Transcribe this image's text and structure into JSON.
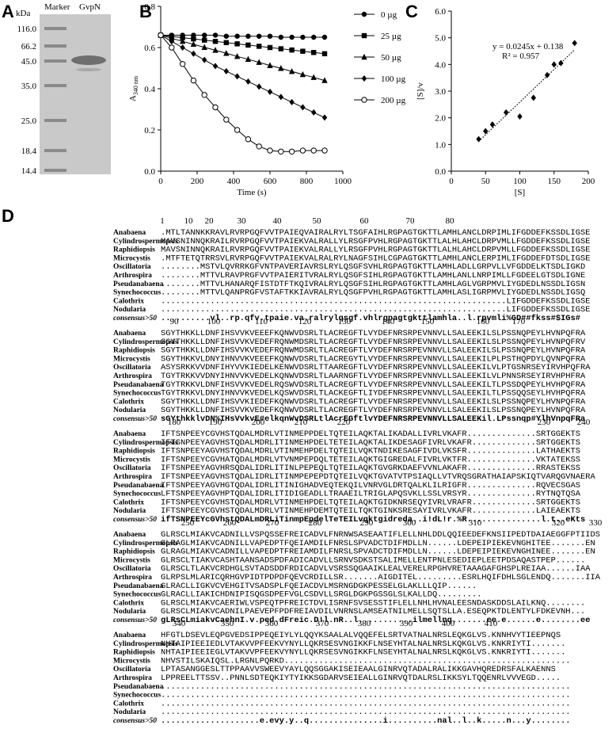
{
  "panel_labels": [
    "A",
    "B",
    "C",
    "D"
  ],
  "gel": {
    "unit": "kDa",
    "lanes": [
      "Marker",
      "GvpN"
    ],
    "markers": [
      "116.0",
      "66.2",
      "45.0",
      "35.0",
      "25.0",
      "18.4",
      "14.4"
    ]
  },
  "chart_data": [
    {
      "type": "line",
      "y_label": "A",
      "y_label_sub": "340 nm",
      "x_label": "Time (s)",
      "x": [
        0,
        60,
        120,
        180,
        240,
        300,
        360,
        420,
        480,
        540,
        600,
        660,
        720,
        780,
        840,
        900
      ],
      "xlim": [
        0,
        1000
      ],
      "xticks": [
        0,
        200,
        400,
        600,
        800,
        1000
      ],
      "ylim": [
        0,
        0.8
      ],
      "yticks": [
        {
          "value": 0,
          "label": "0.0"
        },
        {
          "value": 0.2,
          "label": "0.2"
        },
        {
          "value": 0.4,
          "label": "0.4"
        },
        {
          "value": 0.6,
          "label": "0.6"
        },
        {
          "value": 0.8,
          "label": "0.8"
        }
      ],
      "legend": "right",
      "series": [
        {
          "name": "0 µg",
          "color": "#000000",
          "marker": "circle",
          "values": [
            0.66,
            0.66,
            0.66,
            0.66,
            0.66,
            0.66,
            0.655,
            0.655,
            0.655,
            0.655,
            0.655,
            0.65,
            0.65,
            0.65,
            0.65,
            0.65
          ]
        },
        {
          "name": "25 µg",
          "color": "#000000",
          "marker": "square",
          "values": [
            0.66,
            0.654,
            0.648,
            0.642,
            0.636,
            0.63,
            0.624,
            0.618,
            0.612,
            0.606,
            0.6,
            0.594,
            0.588,
            0.582,
            0.576,
            0.57
          ]
        },
        {
          "name": "50 µg",
          "color": "#000000",
          "marker": "triangle",
          "values": [
            0.66,
            0.645,
            0.63,
            0.616,
            0.601,
            0.587,
            0.572,
            0.557,
            0.543,
            0.528,
            0.513,
            0.499,
            0.484,
            0.469,
            0.455,
            0.44
          ]
        },
        {
          "name": "100 µg",
          "color": "#000000",
          "marker": "diamond",
          "values": [
            0.66,
            0.63,
            0.6,
            0.57,
            0.54,
            0.51,
            0.485,
            0.46,
            0.435,
            0.41,
            0.385,
            0.36,
            0.335,
            0.31,
            0.285,
            0.26
          ]
        },
        {
          "name": "200 µg",
          "color": "#000000",
          "marker": "open-circle",
          "values": [
            0.66,
            0.6,
            0.52,
            0.44,
            0.37,
            0.31,
            0.25,
            0.2,
            0.155,
            0.12,
            0.1,
            0.095,
            0.095,
            0.1,
            0.1,
            0.1
          ]
        }
      ]
    },
    {
      "type": "scatter",
      "x_label": "[S]",
      "y_label": "[S]/v",
      "x": [
        40,
        50,
        60,
        80,
        100,
        120,
        140,
        150,
        160,
        180
      ],
      "values": [
        1.2,
        1.5,
        1.75,
        2.2,
        2.05,
        2.75,
        3.6,
        4.0,
        4.05,
        4.8
      ],
      "color": "#000000",
      "xlim": [
        0,
        200
      ],
      "xticks": [
        0,
        50,
        100,
        150,
        200
      ],
      "ylim": [
        0,
        6
      ],
      "yticks": [
        {
          "value": 0,
          "label": "0.0"
        },
        {
          "value": 1,
          "label": "1.0"
        },
        {
          "value": 2,
          "label": "2.0"
        },
        {
          "value": 3,
          "label": "3.0"
        },
        {
          "value": 4,
          "label": "4.0"
        },
        {
          "value": 5,
          "label": "5.0"
        },
        {
          "value": 6,
          "label": "6.0"
        }
      ],
      "trendline": {
        "slope": 0.0245,
        "intercept": 0.138
      },
      "annotations": [
        "y = 0.0245x + 0.138",
        "R² = 0.957"
      ]
    }
  ],
  "alignment": {
    "names": [
      "Anabaena",
      "Cylindrospermopsis",
      "Raphidiopsis",
      "Microcystis",
      "Oscillatoria",
      "Arthrospira",
      "Pseudanabaena",
      "Synechococcus",
      "Calothrix",
      "Nodularia",
      "consensus>50"
    ],
    "blocks": [
      {
        "positions": [
          1,
          10,
          20,
          30,
          40,
          50,
          60,
          70,
          80
        ],
        "rows": [
          ".MTLTANNKKRAVLRVRPGQFVVTPAIEQVAIRALRYLTSGFAIHLRGPAGTGKTTLAMHLANCLDRPIMLIFGDDEFKSSDLIGSE",
          "MAVSNINNQKRAILRVRPGQFVVTPAIEKVALRALLYLRSGFPVHLRGPAGTGKTTLALHLAHCLDRPVMLLFGDDEFKSSDLIGSE",
          "MAVSNINNQKRAILRVRPGQFVVTPAIEKVALRALLYLRSGFPVHLRGPAGTGKTTLALHLAHCLDRPVMLLFGDDEFKSSDLIGSE",
          ".MTFTETQTRRSVLRVRPGQFVVTPAIEKVALRALRYLNAGFSIHLCGPAGTGKTTLAMHLANCLERPIMLIFGDDEFDTSDLIGSE",
          "........MSTVLQVRRKGFVNTPAVERIAVRSLRYLQSGFSVHLRGPAGTGKTTLAMHLADLLGRPVLLVFGDDELKTSDLIGKD",
          "........MTTVLRAVPRGFVVTPAIERITVRALRYLQSGFSIHLRGPAGTGKTTLAMHLANLLNRPIMLLFGDEELGTSDLIGNE",
          "........MTTVLHANARQFISTDTFTKQIVRALRYLQSGFSIHLRGPAGTGKTTLAMHLAGLVGRPMVLIYGDEDLNSSDLIGSN",
          "........MTTVLQANPRGFVSTAFTKKIAVRALRYLQSGFPVHLRGPAGTGKTTLAMHLASLIGRPMVLIYGDEDLNSSDLIGSQ",
          "......................................................................LIFGDDEFKSSDLIGSE",
          "......................................................................LIFGDDEFKSSDLIGSE",
          "..........vl..rp.qfv.tpaie.va.ralrylqsgf.vhlrgpagtgkttlamhla..l.rpvmli%GD##fkss#$IGs#"
        ]
      },
      {
        "positions": [
          90,
          100,
          110,
          120,
          130,
          140,
          150,
          160,
          170
        ],
        "rows": [
          "SGYTHKKLLDNFIHSVVKVEEEFKQNWVDSRLTLACREGFTLVYDEFNRSRPEVNNVLLSALEEKILSLPSSNQPEYLHVNPQFRA",
          "SGYTHKKLLDNFIHSVVKVEDEFRQNWMDSRLTLACREGFTLVYDEFNRSRPEVNNVLLSALEEKILSLPSSNQPEYLHVNPQFRV",
          "SGYTHKKLLDNFIHSVVKVEDEFRQNWMDSRLTLACREGFTLVYDEFNRSRPEVNNVLLSALEEKILSLPSSNQPEYLHVNPQFRA",
          "SGYTHKKVLDNYIHNVVKVEEEFKQNWVDSRLTLACREGYTLVYDEFNRSRPEVNNVLLSALEEKILPLPSTHQPDYLQVNPQFRA",
          "ASYSRKKVVDNFIHYVVKIEDELKENWVDSRLTTAAREGFTLVYDEFNRSRPEVNNVLLSALEEKILVLPTGSNRSEYIRVHPQFRA",
          "TGYTRKKVVDNYIHNVVKVEDELKQNWVDSRLTLAARNGFTLVYDEFNRSRPEVNNVLLSALEEKILVLPNNSRSEYIRVHPHFRA",
          "TGYTRKKVLDNFIHSVVKVEDELRQSWVDSRLTLACREGFTLVYDEFNRSRPEVNNVLLSALEEKILTLPSSDQPEYLHVHPQFRA",
          "TGYTRKKVLDNYIHNVVKVEDELKQSWVDSRLTLACKEGFTLIYDEFNRSRPEVNNVLLSALEEKILTLPSSQQSEYLHVHPQFRA",
          "SGYTHKKLLDNFIHSVVKIEDEFKQNWVDSRLTLACREGFTLVYDEFNRSRPEVNNVLLSALEEKILSLPSSNQPEYLHVNPQFRA",
          "SGYTHKKLLDNFIHSVVKVEDEFKQNWVDSRLTLACREGFTLVYDEFNRSRPEVNNVLLSALEEKILSLPSSNQPEYLHVNPQFRA",
          "sGYthkklvDN%IHsVvkvE#elkqnWvDSRLtlAcrEGftlvYDEFNRSRPEVNNVLLSALEEKil.LPssnqp#YlhVnpqFRa"
        ]
      },
      {
        "positions": [
          180,
          190,
          200,
          210,
          220,
          230,
          240
        ],
        "rows": [
          "IFTSNPEEYCGVHSTQDALMDRLVTINMEPPDELTQTEILAQKTALIKADALLIVRLVKAFR..............SRTGGEKTS",
          "IFTSNPEEYAGVHSTQDALMDRLITINMEHPDELTETEILAQKTALIKDESAGFIVRLVKAFR.............SRTGGEKTS",
          "IFTSNPEEYAGVHSTQDALMDRLVTINMEHPDELTQTEILVQKTNDIKESAGFIVDLVKSFR..............LATHAEKTS",
          "IFTSNPEEYCGVHATQDALMDRLVTVNMPEPDQLTETEILAQKTGIGREDALFIVRLVKTFR..............VKTATEKSS",
          "IFTSNPEEYAGVHRSQDALIDRLITINLPEPEQLTQTEILAQKTGVGRKDAEFVVNLAKAFR..............RRASTEKSS",
          "IFTSNPEEYAGVHSTQDALIDRLITINMPEPEPDTQTEILVQKTGVATVTPSIAQLLVTVRQSGRATHAIAPSKIQTVARQGVNAERA",
          "IFTSNPEEYAGVHGTQDALIDRLITINIGHADVEQTEKQILVNRVGLDRTQALKLILRIGFR..............RQVECSGAS",
          "LFTSNPEEYAGVHPTQDALIDRLITIDIGEADLLTRAAEILTRIGLAPQSVKLLSSLVRSYR..............RYTNQTQSA",
          "IFTSNPEEYCGVHSTQDALMDRLVTINMEHPDELTQTEILAQKTGIDKNRSEQYIVRLVRAFR.............SRTGGEKTS",
          "IFTSNPEEYCGVHSTQDALMDRLVTINMEHPDEMTQTEILTQKTGINKSRESAYIVRLVKAFR.............LAIEAEKTS",
          "ifTSNPEEYcGVhstQDALmDRLiTinmpEpdelTeTEILvqktgidreda..i!dL!r.%R...............l.t..eKts"
        ]
      },
      {
        "positions": [
          250,
          260,
          270,
          280,
          290,
          300,
          310,
          320,
          330
        ],
        "rows": [
          "GLRSCLMIAKVCADNILLVSPQSSEFREICADVLFNRNWSASEAATIFLELLNHLDDLQQIEEDEFKNSIIPEDTDAIAEGGFPTIIDS",
          "GLRAGLMIAKVCADNILLVAPEDPTFQEIAMDILFNRSLSPVADCTDIFMDLLN......LDEPEIPIEKEVNGHITEE.......EN",
          "GLRAGLMIAKVCADNILLVAPEDPTFREIAMDILFNRSLSPVADCTDIFMDLLN......LDEPEIPIEKEVNGHINEE.......EN",
          "GLRSCLTIAKVCASHTAANSADSPDFADICADVLLSRNVSDKSTSALIMELLENTPNLESEDIEPLEETPDSAQASTPEP......",
          "GLRSCLTLAKVCRDHGLSVTADSDDFRDICADVLVSRSSQGAAIKLEALVERELRPGHVRETAAAGAFGHSPLREIAA......IAA",
          "GLRPSLMLARICQRHGVPIDTPDPDFQEVCRDILLSR.......AIGDITEL.........ESRLHQIFDHLSGLENDQ.......IIA",
          "GLRACLLIGKVCVEHGITVSADSPLFQEIACDVLMSRNGDGKPESSELGLAKLLLQIP......",
          "GLRACLLIAKICHDNIPISQGSDPEFVGLCSDVLLSRGLDGKPGSSGLSLKALLDQ.........",
          "GLRSCLMIAKVCAERIWLVSPEQTPFREICTDVLISRNFSVSESSTIFLELLNHLHVNALEESNDASKDDSLAILKNQ........",
          "GLRSCLMIAKVCADNILPAEVEPFPDFREIAVDILVNRNSLAMSEATNILMELLSQTSLLA.ESEQPKTDLENTYLFDKEVNH...",
          "gLRsCLmiakvCaehnI.v.ped.dFreic.D!l.nR..l...........ilmellnq.......ee.e......e........ee"
        ]
      },
      {
        "positions": [
          340,
          350,
          360,
          370,
          380,
          390,
          400,
          410
        ],
        "rows": [
          "HFGTLDSEVLEQPGVEDSIPPEQEIYLYLQQYKSAALALVQQEFELSRTVATNALNRSLEQKGLVS.KNNHVYTIEEPNQS",
          "NHTAIPIEEIEDLVTAKVVPFEEKVYNYLLQKRSESVNGIKKFLNSEYHTALNALNRSLKQKGLVS.KNKRIYTI.......",
          "NHTAIPIEEIEGLVTAKVVPFEEKVYNYLLQKRSESVNGIKKFLNSEYHTALNALNRSLKQKGLVS.KNKRIYTI.......",
          "NHVSTILSKAIQSL.LRGNLPQRKD..........................................................",
          "LPTASANGGESLTTPPAAVVSWEEVYAYLQQSGGAKISEIEAALGINRVQTADALRALIKKGAVHQREDRSFALKAENNS",
          "LPPREELTTSSV..PNNLSDTEQKIYTYIKKSGDARVSEIEALLGINRVQTDALRSLIKKSYLTQQENRLVVVEGD.....",
          "...................................................................................",
          "...................................................................................",
          "...................................................................................",
          "...................................................................................",
          "....................e.evy.y..q...............i..........nal..l..k.....n...y........"
        ]
      }
    ]
  }
}
